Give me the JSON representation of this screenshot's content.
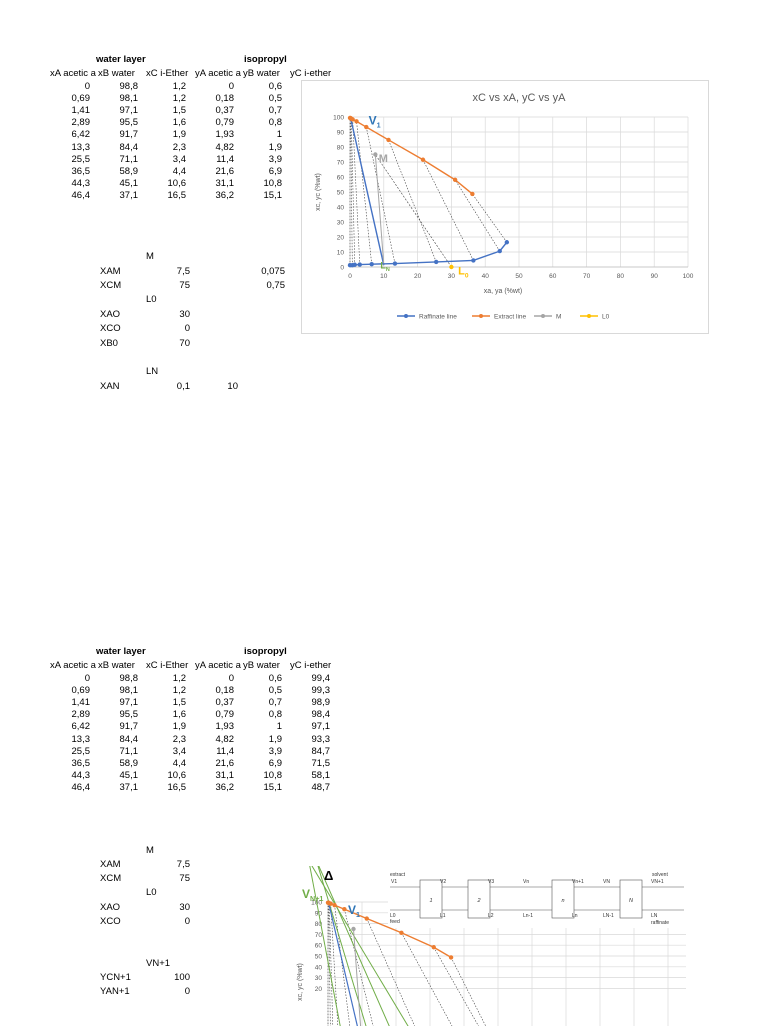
{
  "tables": [
    {
      "group_headers": {
        "water": "water layer",
        "iso": "isopropyl"
      },
      "columns": [
        "xA acetic a",
        "xB water",
        "xC i-Ether",
        "yA acetic a",
        "yB water",
        "yC i-ether"
      ],
      "rows": [
        [
          "0",
          "98,8",
          "1,2",
          "0",
          "0,6",
          ""
        ],
        [
          "0,69",
          "98,1",
          "1,2",
          "0,18",
          "0,5",
          ""
        ],
        [
          "1,41",
          "97,1",
          "1,5",
          "0,37",
          "0,7",
          ""
        ],
        [
          "2,89",
          "95,5",
          "1,6",
          "0,79",
          "0,8",
          ""
        ],
        [
          "6,42",
          "91,7",
          "1,9",
          "1,93",
          "1",
          ""
        ],
        [
          "13,3",
          "84,4",
          "2,3",
          "4,82",
          "1,9",
          ""
        ],
        [
          "25,5",
          "71,1",
          "3,4",
          "11,4",
          "3,9",
          ""
        ],
        [
          "36,5",
          "58,9",
          "4,4",
          "21,6",
          "6,9",
          ""
        ],
        [
          "44,3",
          "45,1",
          "10,6",
          "31,1",
          "10,8",
          ""
        ],
        [
          "46,4",
          "37,1",
          "16,5",
          "36,2",
          "15,1",
          ""
        ]
      ]
    },
    {
      "group_headers": {
        "water": "water layer",
        "iso": "isopropyl"
      },
      "columns": [
        "xA acetic a",
        "xB water",
        "xC i-Ether",
        "yA acetic a",
        "yB water",
        "yC i-ether"
      ],
      "rows": [
        [
          "0",
          "98,8",
          "1,2",
          "0",
          "0,6",
          "99,4"
        ],
        [
          "0,69",
          "98,1",
          "1,2",
          "0,18",
          "0,5",
          "99,3"
        ],
        [
          "1,41",
          "97,1",
          "1,5",
          "0,37",
          "0,7",
          "98,9"
        ],
        [
          "2,89",
          "95,5",
          "1,6",
          "0,79",
          "0,8",
          "98,4"
        ],
        [
          "6,42",
          "91,7",
          "1,9",
          "1,93",
          "1",
          "97,1"
        ],
        [
          "13,3",
          "84,4",
          "2,3",
          "4,82",
          "1,9",
          "93,3"
        ],
        [
          "25,5",
          "71,1",
          "3,4",
          "11,4",
          "3,9",
          "84,7"
        ],
        [
          "36,5",
          "58,9",
          "4,4",
          "21,6",
          "6,9",
          "71,5"
        ],
        [
          "44,3",
          "45,1",
          "10,6",
          "31,1",
          "10,8",
          "58,1"
        ],
        [
          "46,4",
          "37,1",
          "16,5",
          "36,2",
          "15,1",
          "48,7"
        ]
      ]
    }
  ],
  "calc1": {
    "m_head": "M",
    "xam": {
      "label": "XAM",
      "v1": "7,5",
      "v2": "0,075"
    },
    "xcm": {
      "label": "XCM",
      "v1": "75",
      "v2": "0,75"
    },
    "l0_head": "L0",
    "xao": {
      "label": "XAO",
      "v1": "30"
    },
    "xco": {
      "label": "XCO",
      "v1": "0"
    },
    "xb0": {
      "label": "XB0",
      "v1": "70"
    },
    "ln_head": "LN",
    "xan": {
      "label": "XAN",
      "v1": "0,1",
      "v2": "10"
    }
  },
  "calc2": {
    "m_head": "M",
    "xam": {
      "label": "XAM",
      "v1": "7,5"
    },
    "xcm": {
      "label": "XCM",
      "v1": "75"
    },
    "l0_head": "L0",
    "xao": {
      "label": "XAO",
      "v1": "30"
    },
    "xco": {
      "label": "XCO",
      "v1": "0"
    },
    "vn_head": "VN+1",
    "ycn": {
      "label": "YCN+1",
      "v1": "100"
    },
    "yan": {
      "label": "YAN+1",
      "v1": "0"
    }
  },
  "chart_data": [
    {
      "type": "scatter",
      "title": "xC vs xA, yC vs yA",
      "xlabel": "xa, ya (%wt)",
      "ylabel": "xc, yc (%wt)",
      "xlim": [
        0,
        100
      ],
      "ylim": [
        0,
        100
      ],
      "xticks": [
        0,
        10,
        20,
        30,
        40,
        50,
        60,
        70,
        80,
        90,
        100
      ],
      "yticks": [
        0,
        10,
        20,
        30,
        40,
        50,
        60,
        70,
        80,
        90,
        100
      ],
      "grid": true,
      "legend_position": "bottom",
      "series": [
        {
          "name": "Raffinate line",
          "color": "#4472c4",
          "x": [
            0,
            0.69,
            1.41,
            2.89,
            6.42,
            13.3,
            25.5,
            36.5,
            44.3,
            46.4
          ],
          "y": [
            1.2,
            1.2,
            1.5,
            1.6,
            1.9,
            2.3,
            3.4,
            4.4,
            10.6,
            16.5
          ]
        },
        {
          "name": "Extract line",
          "color": "#ed7d31",
          "x": [
            0,
            0.18,
            0.37,
            0.79,
            1.93,
            4.82,
            11.4,
            21.6,
            31.1,
            36.2
          ],
          "y": [
            99.4,
            99.3,
            98.9,
            98.4,
            97.1,
            93.3,
            84.7,
            71.5,
            58.1,
            48.7
          ]
        },
        {
          "name": "M",
          "color": "#a5a5a5",
          "x": [
            7.5
          ],
          "y": [
            75
          ]
        },
        {
          "name": "L0",
          "color": "#ffc000",
          "x": [
            30
          ],
          "y": [
            0
          ]
        }
      ],
      "annotations": [
        {
          "text": "V",
          "sub": "1",
          "color": "#2e75b6"
        },
        {
          "text": "M",
          "color": "#a5a5a5"
        },
        {
          "text": "L",
          "sub": "N",
          "color": "#70ad47"
        },
        {
          "text": "L",
          "sub": "0",
          "color": "#ffc000"
        }
      ]
    },
    {
      "type": "scatter",
      "ylabel": "xc, yc (%wt)",
      "ylim": [
        0,
        100
      ],
      "yticks_visible": [
        20,
        30,
        40,
        50,
        60,
        70,
        80,
        90,
        100
      ],
      "series": [
        {
          "name": "Extract line",
          "color": "#ed7d31",
          "x": [
            0,
            0.18,
            0.37,
            0.79,
            1.93,
            4.82,
            11.4,
            21.6,
            31.1,
            36.2
          ],
          "y": [
            99.4,
            99.3,
            98.9,
            98.4,
            97.1,
            93.3,
            84.7,
            71.5,
            58.1,
            48.7
          ]
        },
        {
          "name": "M",
          "color": "#a5a5a5",
          "x": [
            7.5
          ],
          "y": [
            75
          ]
        }
      ],
      "annotations": [
        {
          "text": "Δ"
        },
        {
          "text": "V",
          "sub": "N+1",
          "color": "#70ad47"
        },
        {
          "text": "V",
          "sub": "1",
          "color": "#2e75b6"
        }
      ],
      "inset_diagram": {
        "labels_top": [
          "extract",
          "V1",
          "V2",
          "V3",
          "Vn",
          "Vn+1",
          "VN",
          "VN+1",
          "solvent"
        ],
        "labels_bottom": [
          "L0",
          "feed",
          "L1",
          "L2",
          "Ln-1",
          "Ln",
          "LN-1",
          "LN",
          "raffinate"
        ],
        "stages": [
          "1",
          "2",
          "n",
          "N"
        ]
      }
    }
  ]
}
